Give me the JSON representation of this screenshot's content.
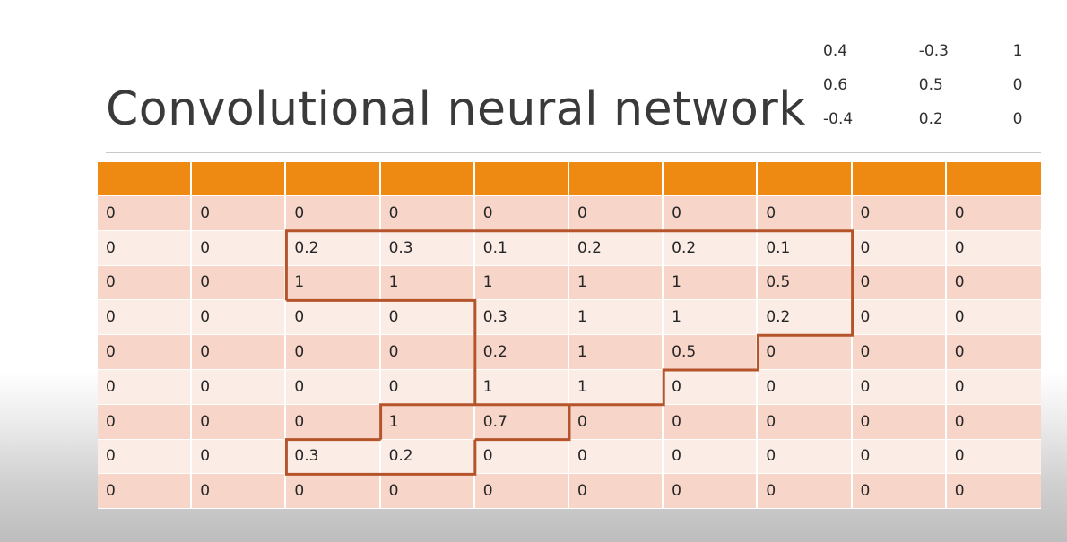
{
  "slide": {
    "title": "Convolutional neural network"
  },
  "kernel": [
    [
      "0.4",
      "-0.3",
      "1"
    ],
    [
      "0.6",
      "0.5",
      "0"
    ],
    [
      "-0.4",
      "0.2",
      "0"
    ]
  ],
  "grid": {
    "header_color": "#ee8a12",
    "row_colors": [
      "#f7d6c9",
      "#fbece6"
    ],
    "outline_color": "#b5542a",
    "rows": [
      [
        "0",
        "0",
        "0",
        "0",
        "0",
        "0",
        "0",
        "0",
        "0",
        "0"
      ],
      [
        "0",
        "0",
        "0.2",
        "0.3",
        "0.1",
        "0.2",
        "0.2",
        "0.1",
        "0",
        "0"
      ],
      [
        "0",
        "0",
        "1",
        "1",
        "1",
        "1",
        "1",
        "0.5",
        "0",
        "0"
      ],
      [
        "0",
        "0",
        "0",
        "0",
        "0.3",
        "1",
        "1",
        "0.2",
        "0",
        "0"
      ],
      [
        "0",
        "0",
        "0",
        "0",
        "0.2",
        "1",
        "0.5",
        "0",
        "0",
        "0"
      ],
      [
        "0",
        "0",
        "0",
        "0",
        "1",
        "1",
        "0",
        "0",
        "0",
        "0"
      ],
      [
        "0",
        "0",
        "0",
        "1",
        "0.7",
        "0",
        "0",
        "0",
        "0",
        "0"
      ],
      [
        "0",
        "0",
        "0.3",
        "0.2",
        "0",
        "0",
        "0",
        "0",
        "0",
        "0"
      ],
      [
        "0",
        "0",
        "0",
        "0",
        "0",
        "0",
        "0",
        "0",
        "0",
        "0"
      ]
    ]
  }
}
